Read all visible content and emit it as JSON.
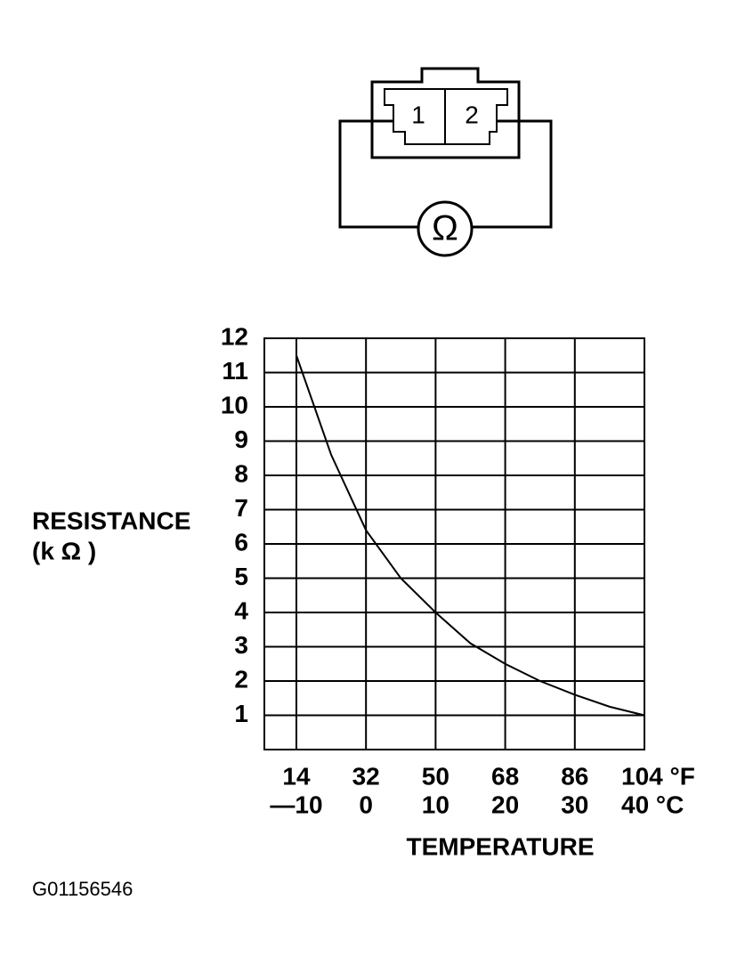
{
  "chart_data": {
    "type": "line",
    "y_label": [
      "RESISTANCE",
      "(k Ω )"
    ],
    "x_label": "TEMPERATURE",
    "x": [
      -10,
      -5,
      0,
      5,
      10,
      15,
      20,
      25,
      30,
      35,
      40
    ],
    "series": [
      {
        "color": "#000000",
        "values": [
          11.5,
          8.6,
          6.4,
          5.0,
          4.0,
          3.1,
          2.5,
          2.0,
          1.6,
          1.25,
          1.0
        ]
      }
    ],
    "xlim": [
      -14.6,
      40
    ],
    "xticks": [
      {
        "value": -10,
        "label": "—10"
      },
      0,
      10,
      20,
      30,
      {
        "value": 40,
        "label": "40 °C"
      }
    ],
    "x2lim": [
      5.72,
      104
    ],
    "x2ticks": [
      14,
      32,
      50,
      68,
      86,
      {
        "value": 104,
        "label": "104 °F"
      }
    ],
    "ylim": [
      0,
      12
    ],
    "yticks": [
      1,
      2,
      3,
      4,
      5,
      6,
      7,
      8,
      9,
      10,
      11,
      12
    ],
    "grid": true
  },
  "diagram": {
    "pins": [
      "1",
      "2"
    ],
    "meter": "Ω"
  },
  "figure_id": "G01156546"
}
